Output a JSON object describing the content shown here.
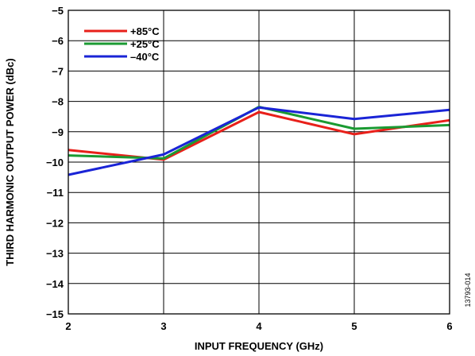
{
  "chart_data": {
    "type": "line",
    "xlabel": "INPUT FREQUENCY (GHz)",
    "ylabel": "THIRD HARMONIC OUTPUT POWER (dBc)",
    "xlim": [
      2,
      6
    ],
    "ylim": [
      -15,
      -5
    ],
    "xticks": [
      "2",
      "3",
      "4",
      "5",
      "6"
    ],
    "yticks": [
      "−5",
      "−6",
      "−7",
      "−8",
      "−9",
      "−10",
      "−11",
      "−12",
      "−13",
      "−14",
      "−15"
    ],
    "grid": true,
    "legend_position": "top-left",
    "x": [
      2,
      3,
      4,
      5,
      6
    ],
    "series": [
      {
        "name": "+85°C",
        "color": "#e8201a",
        "values": [
          -9.6,
          -9.92,
          -8.35,
          -9.08,
          -8.62
        ]
      },
      {
        "name": "+25°C",
        "color": "#1a9a32",
        "values": [
          -9.78,
          -9.88,
          -8.18,
          -8.9,
          -8.78
        ]
      },
      {
        "name": "–40°C",
        "color": "#1a24d6",
        "values": [
          -10.42,
          -9.75,
          -8.2,
          -8.58,
          -8.28
        ]
      }
    ],
    "figure_id": "13793-014"
  }
}
